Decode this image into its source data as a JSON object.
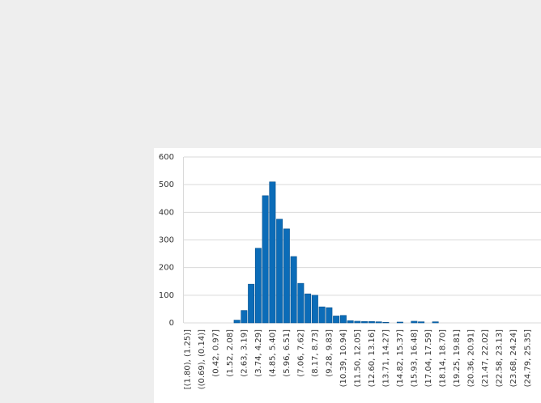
{
  "chart_data": {
    "type": "bar",
    "categories": [
      "[(1.80), (1.25)]",
      null,
      "((0.69), (0.14)]",
      null,
      "(0.42, 0.97]",
      null,
      "(1.52, 2.08]",
      null,
      "(2.63, 3.19]",
      null,
      "(3.74, 4.29]",
      null,
      "(4.85, 5.40]",
      null,
      "(5.96, 6.51]",
      null,
      "(7.06, 7.62]",
      null,
      "(8.17, 8.73]",
      null,
      "(9.28, 9.83]",
      null,
      "(10.39, 10.94]",
      null,
      "(11.50, 12.05]",
      null,
      "(12.60, 13.16]",
      null,
      "(13.71, 14.27]",
      null,
      "(14.82, 15.37]",
      null,
      "(15.93, 16.48]",
      null,
      "(17.04, 17.59]",
      null,
      "(18.14, 18.70]",
      null,
      "(19.25, 19.81]",
      null,
      "(20.36, 20.91]",
      null,
      "(21.47, 22.02]",
      null,
      "(22.58, 23.13]",
      null,
      "(23.68, 24.24]",
      null,
      "(24.79, 25.35]"
    ],
    "values": [
      0,
      0,
      0,
      0,
      0,
      0,
      0,
      10,
      45,
      140,
      270,
      460,
      510,
      375,
      340,
      240,
      143,
      105,
      100,
      58,
      55,
      25,
      27,
      8,
      6,
      5,
      5,
      4,
      2,
      0,
      3,
      0,
      6,
      4,
      0,
      4,
      0,
      0,
      0,
      0,
      0,
      0,
      0,
      0,
      0,
      0,
      0,
      0,
      0
    ],
    "color": "#0b6cb8",
    "ylim": [
      0,
      600
    ],
    "yticks": [
      0,
      100,
      200,
      300,
      400,
      500,
      600
    ],
    "grid": true
  }
}
